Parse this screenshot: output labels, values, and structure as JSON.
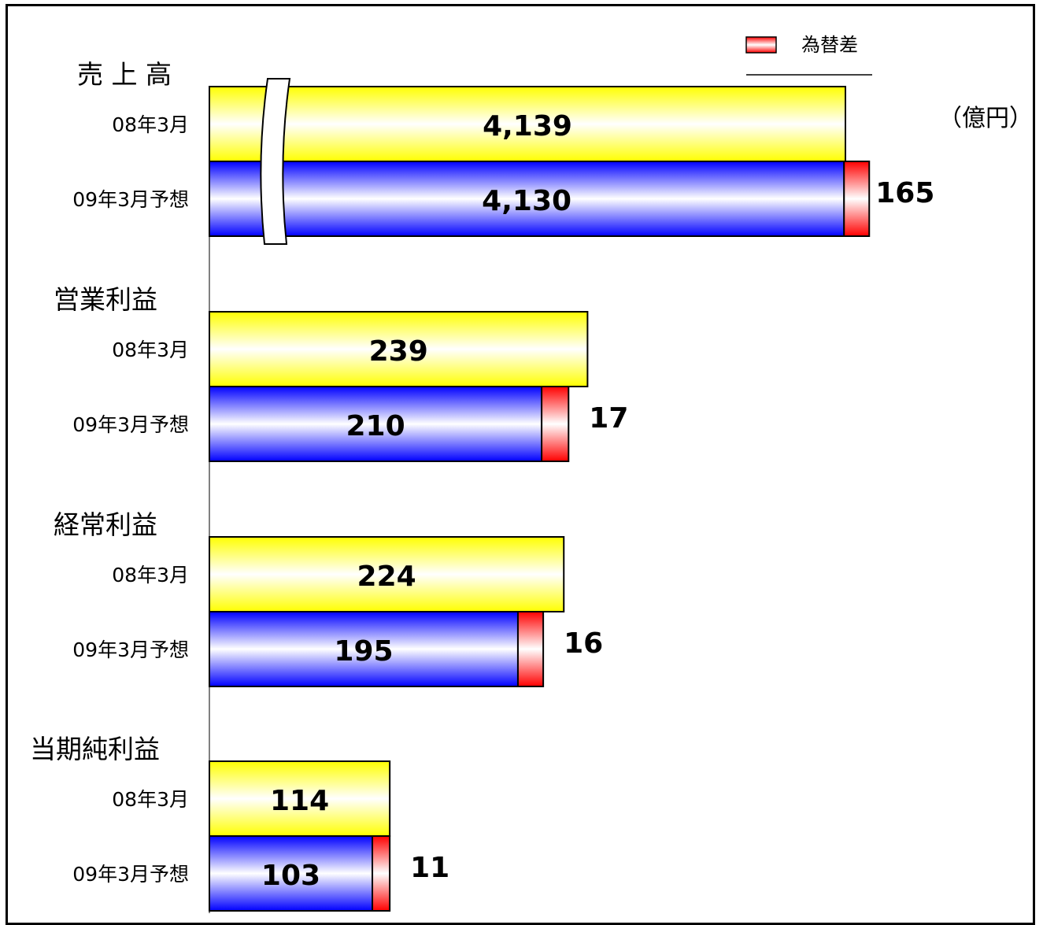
{
  "chart_data": {
    "type": "bar",
    "orientation": "horizontal",
    "unit": "（億円）",
    "legend": {
      "label": "為替差",
      "placement": "top-right"
    },
    "colors": {
      "prior": "#ffff00",
      "forecast": "#0000ff",
      "fx": "#ff0000"
    },
    "axis_break_on_first_group": true,
    "groups": [
      {
        "label": "売 上 高",
        "bars": [
          {
            "label": "08年3月",
            "value": 4139,
            "value_text": "4,139"
          },
          {
            "label": "09年3月予想",
            "value": 4130,
            "value_text": "4,130",
            "fx": 165,
            "fx_text": "165"
          }
        ]
      },
      {
        "label": "営業利益",
        "bars": [
          {
            "label": "08年3月",
            "value": 239,
            "value_text": "239"
          },
          {
            "label": "09年3月予想",
            "value": 210,
            "value_text": "210",
            "fx": 17,
            "fx_text": "17"
          }
        ]
      },
      {
        "label": "経常利益",
        "bars": [
          {
            "label": "08年3月",
            "value": 224,
            "value_text": "224"
          },
          {
            "label": "09年3月予想",
            "value": 195,
            "value_text": "195",
            "fx": 16,
            "fx_text": "16"
          }
        ]
      },
      {
        "label": "当期純利益",
        "bars": [
          {
            "label": "08年3月",
            "value": 114,
            "value_text": "114"
          },
          {
            "label": "09年3月予想",
            "value": 103,
            "value_text": "103",
            "fx": 11,
            "fx_text": "11"
          }
        ]
      }
    ]
  }
}
